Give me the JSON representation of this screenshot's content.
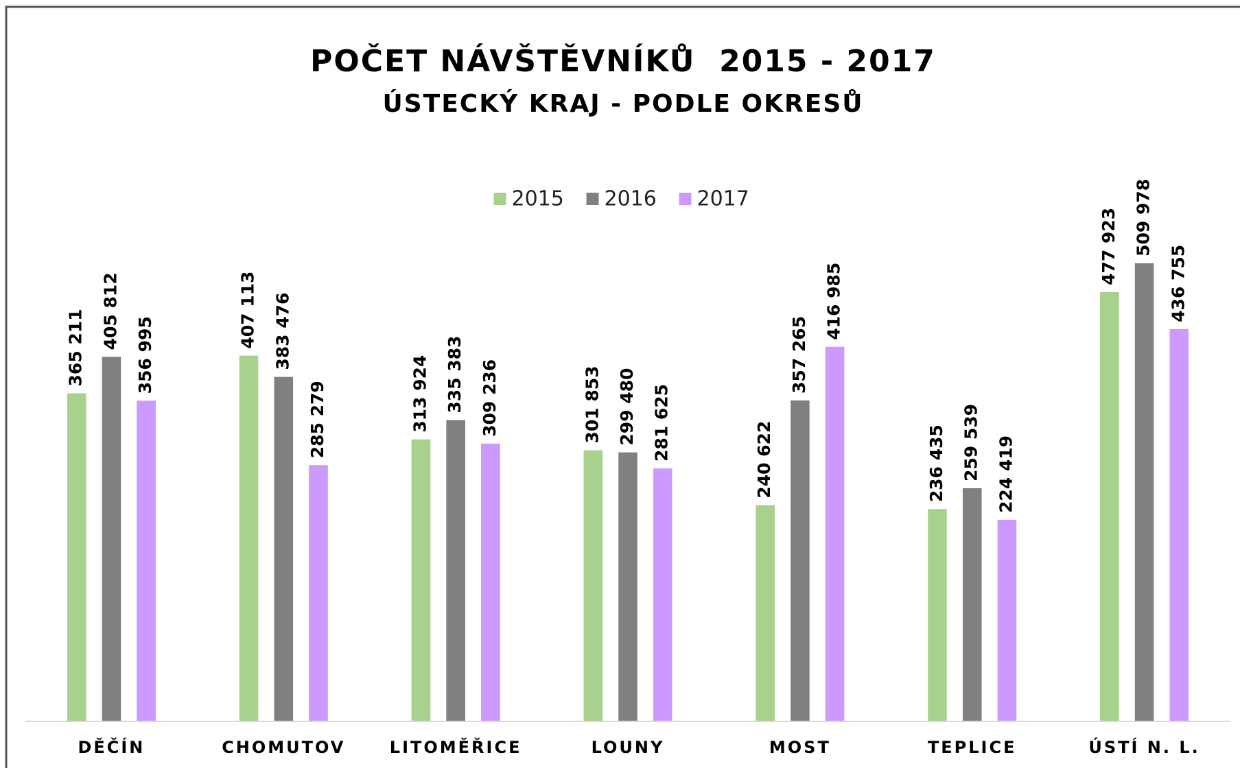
{
  "chart_data": {
    "type": "bar",
    "title": "POČET NÁVŠTĚVNÍKŮ  2015 - 2017",
    "subtitle": "ÚSTECKÝ KRAJ - PODLE OKRESŮ",
    "categories": [
      "DĚČÍN",
      "CHOMUTOV",
      "LITOMĚŘICE",
      "LOUNY",
      "MOST",
      "TEPLICE",
      "ÚSTÍ N. L."
    ],
    "series": [
      {
        "name": "2015",
        "color": "#a9d18e",
        "values": [
          365211,
          407113,
          313924,
          301853,
          240622,
          236435,
          477923
        ],
        "value_labels": [
          "365 211",
          "407 113",
          "313 924",
          "301 853",
          "240 622",
          "236 435",
          "477 923"
        ]
      },
      {
        "name": "2016",
        "color": "#808080",
        "values": [
          405812,
          383476,
          335383,
          299480,
          357265,
          259539,
          509978
        ],
        "value_labels": [
          "405 812",
          "383 476",
          "335 383",
          "299 480",
          "357 265",
          "259 539",
          "509 978"
        ]
      },
      {
        "name": "2017",
        "color": "#cc99ff",
        "values": [
          356995,
          285279,
          309236,
          281625,
          416985,
          224419,
          436755
        ],
        "value_labels": [
          "356 995",
          "285 279",
          "309 236",
          "281 625",
          "416 985",
          "224 419",
          "436 755"
        ]
      }
    ],
    "ylim": [
      0,
      600000
    ],
    "legend": "top"
  }
}
